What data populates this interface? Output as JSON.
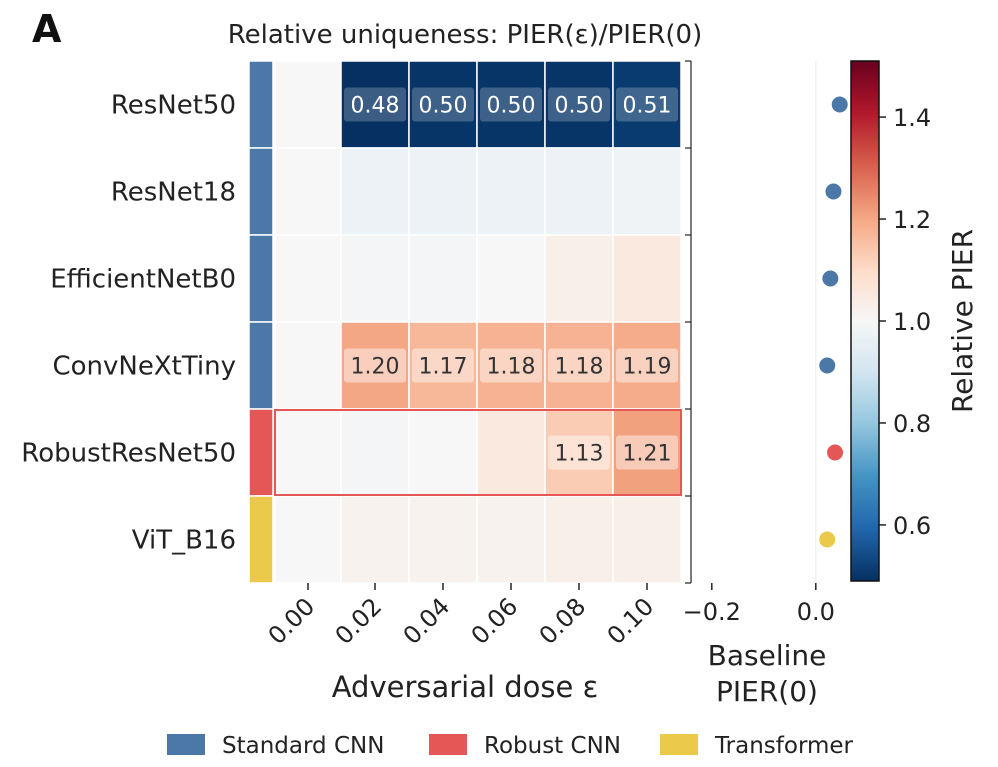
{
  "panel_label": "A",
  "colors": {
    "standard_cnn": "#4c78a8",
    "robust_cnn": "#e45756",
    "transformer": "#ebc94b",
    "highlight_outline": "#e45756"
  },
  "chart_data": [
    {
      "type": "heatmap",
      "title": "Relative uniqueness: PIER(ε)/PIER(0)",
      "xlabel": "Adversarial dose ε",
      "ylabel": "",
      "x": [
        0.0,
        0.02,
        0.04,
        0.06,
        0.08,
        0.1
      ],
      "x_tick_labels": [
        "0.00",
        "0.02",
        "0.04",
        "0.06",
        "0.08",
        "0.10"
      ],
      "rows": [
        {
          "model": "ResNet50",
          "group": "standard_cnn",
          "values": [
            1.0,
            0.48,
            0.5,
            0.5,
            0.5,
            0.51
          ],
          "annotated": [
            false,
            true,
            true,
            true,
            true,
            true
          ],
          "labels": [
            "",
            "0.48",
            "0.50",
            "0.50",
            "0.50",
            "0.51"
          ],
          "highlight": false
        },
        {
          "model": "ResNet18",
          "group": "standard_cnn",
          "values": [
            1.0,
            0.97,
            0.97,
            0.97,
            0.97,
            0.98
          ],
          "annotated": [
            false,
            false,
            false,
            false,
            false,
            false
          ],
          "labels": [
            "",
            "",
            "",
            "",
            "",
            ""
          ],
          "highlight": false
        },
        {
          "model": "EfficientNetB0",
          "group": "standard_cnn",
          "values": [
            1.0,
            0.99,
            0.99,
            1.0,
            1.03,
            1.05
          ],
          "annotated": [
            false,
            false,
            false,
            false,
            false,
            false
          ],
          "labels": [
            "",
            "",
            "",
            "",
            "",
            ""
          ],
          "highlight": false
        },
        {
          "model": "ConvNeXtTiny",
          "group": "standard_cnn",
          "values": [
            1.0,
            1.2,
            1.17,
            1.18,
            1.18,
            1.19
          ],
          "annotated": [
            false,
            true,
            true,
            true,
            true,
            true
          ],
          "labels": [
            "",
            "1.20",
            "1.17",
            "1.18",
            "1.18",
            "1.19"
          ],
          "highlight": false
        },
        {
          "model": "RobustResNet50",
          "group": "robust_cnn",
          "values": [
            1.0,
            0.99,
            1.0,
            1.05,
            1.13,
            1.21
          ],
          "annotated": [
            false,
            false,
            false,
            false,
            true,
            true
          ],
          "labels": [
            "",
            "",
            "",
            "",
            "1.13",
            "1.21"
          ],
          "highlight": true
        },
        {
          "model": "ViT_B16",
          "group": "transformer",
          "values": [
            1.0,
            1.02,
            1.02,
            1.02,
            1.03,
            1.03
          ],
          "annotated": [
            false,
            false,
            false,
            false,
            false,
            false
          ],
          "labels": [
            "",
            "",
            "",
            "",
            "",
            ""
          ],
          "highlight": false
        }
      ],
      "colorbar": {
        "label": "Relative PIER",
        "range": [
          0.49,
          1.51
        ],
        "ticks": [
          0.6,
          0.8,
          1.0,
          1.2,
          1.4
        ],
        "tick_labels": [
          "0.6",
          "0.8",
          "1.0",
          "1.2",
          "1.4"
        ],
        "colormap": "RdBu_r"
      }
    },
    {
      "type": "scatter",
      "xlabel": "Baseline\nPIER(0)",
      "xlabel_lines": [
        "Baseline",
        "PIER(0)"
      ],
      "x_ticks": [
        -0.2,
        0.0
      ],
      "x_tick_labels": [
        "−0.2",
        "0.0"
      ],
      "xlim": [
        -0.24,
        0.06
      ],
      "points": [
        {
          "model": "ResNet50",
          "x": 0.046,
          "group": "standard_cnn"
        },
        {
          "model": "ResNet18",
          "x": 0.034,
          "group": "standard_cnn"
        },
        {
          "model": "EfficientNetB0",
          "x": 0.028,
          "group": "standard_cnn"
        },
        {
          "model": "ConvNeXtTiny",
          "x": 0.022,
          "group": "standard_cnn"
        },
        {
          "model": "RobustResNet50",
          "x": 0.037,
          "group": "robust_cnn"
        },
        {
          "model": "ViT_B16",
          "x": 0.022,
          "group": "transformer"
        }
      ]
    }
  ],
  "legend": [
    {
      "label": "Standard CNN",
      "group": "standard_cnn"
    },
    {
      "label": "Robust CNN",
      "group": "robust_cnn"
    },
    {
      "label": "Transformer",
      "group": "transformer"
    }
  ]
}
